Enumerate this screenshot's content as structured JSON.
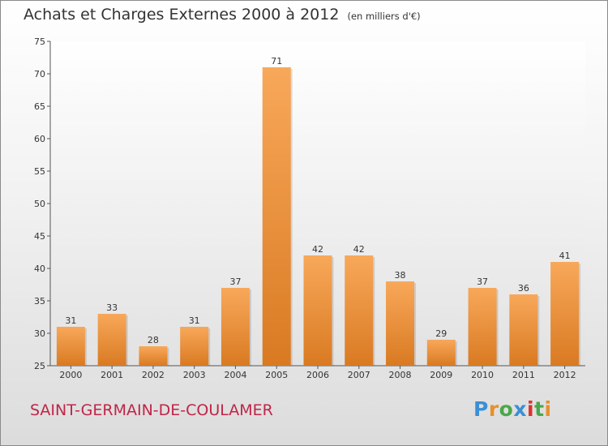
{
  "title": {
    "main": "Achats et Charges Externes 2000 à 2012",
    "unit": "(en milliers d'€)"
  },
  "commune": "SAINT-GERMAIN-DE-COULAMER",
  "logo": {
    "letters": [
      {
        "ch": "P",
        "color": "#3a8fd6"
      },
      {
        "ch": "r",
        "color": "#e8902a"
      },
      {
        "ch": "o",
        "color": "#49a84a"
      },
      {
        "ch": "x",
        "color": "#3a8fd6"
      },
      {
        "ch": "i",
        "color": "#d9332d"
      },
      {
        "ch": "t",
        "color": "#49a84a"
      },
      {
        "ch": "i",
        "color": "#e8902a"
      }
    ]
  },
  "colors": {
    "bar_top": "#f8a85a",
    "bar_bottom": "#d97a22",
    "title": "#333333",
    "commune": "#c02448"
  },
  "chart_data": {
    "type": "bar",
    "categories": [
      "2000",
      "2001",
      "2002",
      "2003",
      "2004",
      "2005",
      "2006",
      "2007",
      "2008",
      "2009",
      "2010",
      "2011",
      "2012"
    ],
    "values": [
      31,
      33,
      28,
      31,
      37,
      71,
      42,
      42,
      38,
      29,
      37,
      36,
      41
    ],
    "ylim": [
      25,
      75
    ],
    "yticks": [
      25,
      30,
      35,
      40,
      45,
      50,
      55,
      60,
      65,
      70,
      75
    ],
    "grid": false,
    "legend": "none"
  }
}
